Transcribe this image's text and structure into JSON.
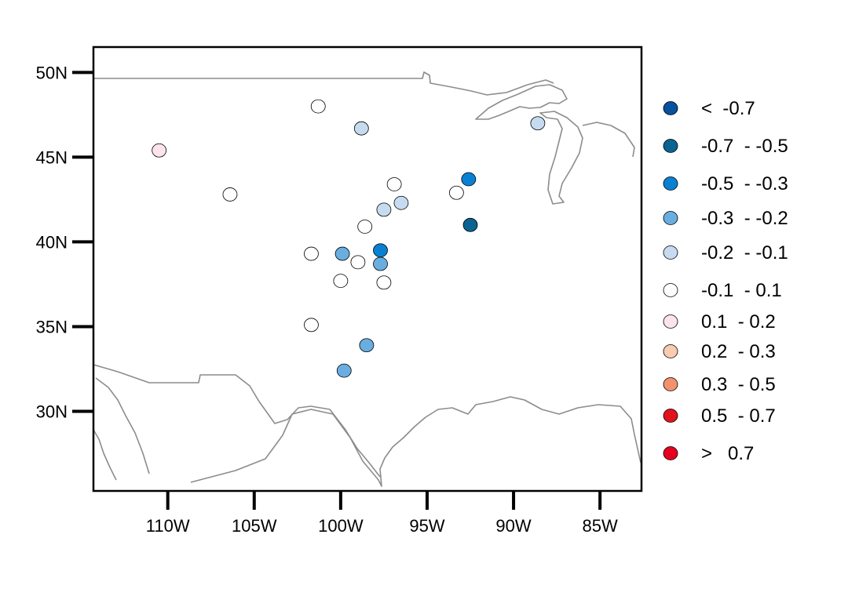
{
  "map": {
    "extent": {
      "lon_min": -114.3,
      "lon_max": -82.6,
      "lat_min": 25.3,
      "lat_max": 51.5
    },
    "y_axis": {
      "ticks": [
        {
          "lat": 50,
          "label": "50N"
        },
        {
          "lat": 45,
          "label": "45N"
        },
        {
          "lat": 40,
          "label": "40N"
        },
        {
          "lat": 35,
          "label": "35N"
        },
        {
          "lat": 30,
          "label": "30N"
        }
      ]
    },
    "x_axis": {
      "ticks": [
        {
          "lon": -110,
          "label": "110W"
        },
        {
          "lon": -105,
          "label": "105W"
        },
        {
          "lon": -100,
          "label": "100W"
        },
        {
          "lon": -95,
          "label": "95W"
        },
        {
          "lon": -90,
          "label": "90W"
        },
        {
          "lon": -85,
          "label": "85W"
        }
      ]
    },
    "boundary_color": "#8c8c8c"
  },
  "legend": {
    "items": [
      {
        "label": "<  -0.7",
        "color": "#08519c"
      },
      {
        "label": "-0.7  - -0.5",
        "color": "#0b6391"
      },
      {
        "label": "-0.5  - -0.3",
        "color": "#0a80d2"
      },
      {
        "label": "-0.3  - -0.2",
        "color": "#6aaee1"
      },
      {
        "label": "-0.2  - -0.1",
        "color": "#c6dbef"
      },
      {
        "label": "-0.1  - 0.1",
        "color": "#ffffff"
      },
      {
        "label": "0.1  - 0.2",
        "color": "#fde3ea"
      },
      {
        "label": "0.2  - 0.3",
        "color": "#f9cbb0"
      },
      {
        "label": "0.3  - 0.5",
        "color": "#f0936c"
      },
      {
        "label": "0.5  - 0.7",
        "color": "#e0141b"
      },
      {
        "label": ">   0.7",
        "color": "#e4001e"
      }
    ]
  },
  "stations": [
    {
      "lon": -101.3,
      "lat": 48.0,
      "class": 5
    },
    {
      "lon": -98.8,
      "lat": 46.7,
      "class": 4
    },
    {
      "lon": -110.5,
      "lat": 45.4,
      "class": 6
    },
    {
      "lon": -106.4,
      "lat": 42.8,
      "class": 5
    },
    {
      "lon": -96.9,
      "lat": 43.4,
      "class": 5
    },
    {
      "lon": -96.5,
      "lat": 42.3,
      "class": 4
    },
    {
      "lon": -97.5,
      "lat": 41.9,
      "class": 4
    },
    {
      "lon": -98.6,
      "lat": 40.9,
      "class": 5
    },
    {
      "lon": -93.3,
      "lat": 42.9,
      "class": 5
    },
    {
      "lon": -92.6,
      "lat": 43.7,
      "class": 2
    },
    {
      "lon": -92.5,
      "lat": 41.0,
      "class": 1
    },
    {
      "lon": -88.6,
      "lat": 47.0,
      "class": 4
    },
    {
      "lon": -101.7,
      "lat": 39.3,
      "class": 5
    },
    {
      "lon": -99.9,
      "lat": 39.3,
      "class": 3
    },
    {
      "lon": -99.0,
      "lat": 38.8,
      "class": 5
    },
    {
      "lon": -97.7,
      "lat": 39.5,
      "class": 2
    },
    {
      "lon": -97.7,
      "lat": 38.7,
      "class": 3
    },
    {
      "lon": -100.0,
      "lat": 37.7,
      "class": 5
    },
    {
      "lon": -97.5,
      "lat": 37.6,
      "class": 5
    },
    {
      "lon": -101.7,
      "lat": 35.1,
      "class": 5
    },
    {
      "lon": -98.5,
      "lat": 33.9,
      "class": 3
    },
    {
      "lon": -99.8,
      "lat": 32.4,
      "class": 3
    }
  ]
}
